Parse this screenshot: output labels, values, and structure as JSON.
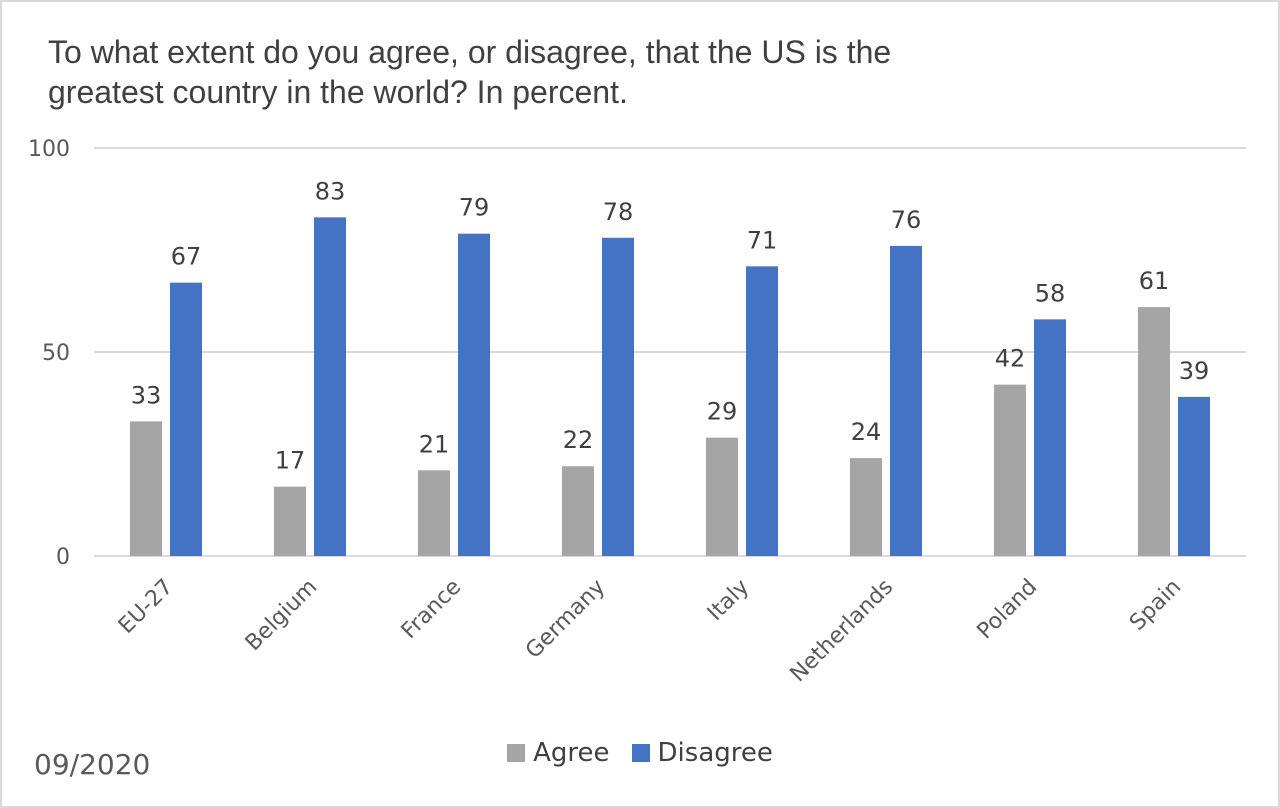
{
  "chart_data": {
    "type": "bar",
    "title": "To what extent do you agree, or disagree, that the US is the greatest country in the world? In percent.",
    "categories": [
      "EU-27",
      "Belgium",
      "France",
      "Germany",
      "Italy",
      "Netherlands",
      "Poland",
      "Spain"
    ],
    "series": [
      {
        "name": "Agree",
        "color": "#a5a5a5",
        "values": [
          33,
          17,
          21,
          22,
          29,
          24,
          42,
          61
        ]
      },
      {
        "name": "Disagree",
        "color": "#4472c4",
        "values": [
          67,
          83,
          79,
          78,
          71,
          76,
          58,
          39
        ]
      }
    ],
    "yticks": [
      0,
      50,
      100
    ],
    "ylim": [
      0,
      100
    ],
    "grid": true,
    "legend": "bottom-center",
    "data_labels": true
  },
  "footnote": "09/2020"
}
